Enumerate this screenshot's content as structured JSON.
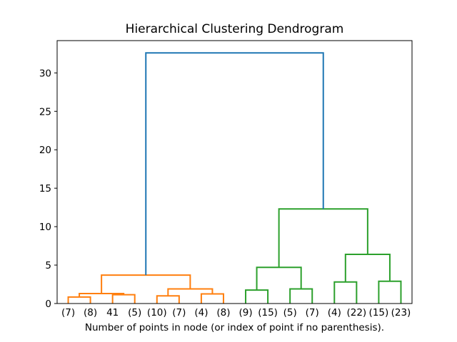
{
  "figure": {
    "title": "Hierarchical Clustering Dendrogram",
    "xlabel": "Number of points in node (or index of point if no parenthesis)."
  },
  "chart_data": {
    "type": "dendrogram",
    "title": "Hierarchical Clustering Dendrogram",
    "xlabel": "Number of points in node (or index of point if no parenthesis).",
    "leaves": [
      "(7)",
      "(8)",
      "41",
      "(5)",
      "(10)",
      "(7)",
      "(4)",
      "(8)",
      "(9)",
      "(15)",
      "(5)",
      "(7)",
      "(4)",
      "(22)",
      "(15)",
      "(23)"
    ],
    "yticks": [
      0,
      5,
      10,
      15,
      20,
      25,
      30
    ],
    "ylim": [
      0,
      34.2
    ],
    "xlim": [
      0,
      160
    ],
    "grid": false,
    "legend": "none",
    "colors": {
      "root_link": "#1f77b4",
      "left_cluster": "#ff7f0e",
      "right_cluster": "#2ca02c",
      "axis": "#000000",
      "background": "#ffffff"
    },
    "merges": [
      {
        "id": "m0",
        "a": "L0",
        "b": "L1",
        "height": 0.85,
        "color": "#ff7f0e"
      },
      {
        "id": "m1",
        "a": "L2",
        "b": "L3",
        "height": 1.15,
        "color": "#ff7f0e"
      },
      {
        "id": "m2",
        "a": "m0",
        "b": "m1",
        "height": 1.3,
        "color": "#ff7f0e"
      },
      {
        "id": "m3",
        "a": "L4",
        "b": "L5",
        "height": 1.0,
        "color": "#ff7f0e"
      },
      {
        "id": "m4",
        "a": "L6",
        "b": "L7",
        "height": 1.25,
        "color": "#ff7f0e"
      },
      {
        "id": "m5",
        "a": "m3",
        "b": "m4",
        "height": 1.9,
        "color": "#ff7f0e"
      },
      {
        "id": "m6",
        "a": "m2",
        "b": "m5",
        "height": 3.7,
        "color": "#ff7f0e"
      },
      {
        "id": "m7",
        "a": "L8",
        "b": "L9",
        "height": 1.75,
        "color": "#2ca02c"
      },
      {
        "id": "m8",
        "a": "L10",
        "b": "L11",
        "height": 1.9,
        "color": "#2ca02c"
      },
      {
        "id": "m9",
        "a": "m7",
        "b": "m8",
        "height": 4.7,
        "color": "#2ca02c"
      },
      {
        "id": "m10",
        "a": "L12",
        "b": "L13",
        "height": 2.8,
        "color": "#2ca02c"
      },
      {
        "id": "m11",
        "a": "L14",
        "b": "L15",
        "height": 2.9,
        "color": "#2ca02c"
      },
      {
        "id": "m12",
        "a": "m10",
        "b": "m11",
        "height": 6.4,
        "color": "#2ca02c"
      },
      {
        "id": "m13",
        "a": "m9",
        "b": "m12",
        "height": 12.3,
        "color": "#2ca02c"
      },
      {
        "id": "m14",
        "a": "m6",
        "b": "m13",
        "height": 32.6,
        "color": "#1f77b4"
      }
    ]
  }
}
